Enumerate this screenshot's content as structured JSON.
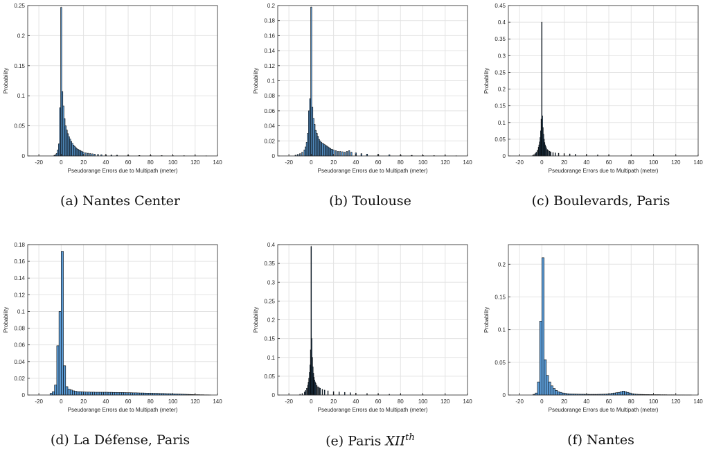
{
  "figure": {
    "colors": {
      "bar_fill": "#5b9bd5",
      "bar_edge": "#000000",
      "grid": "#e3e3e3",
      "axis": "#262626"
    }
  },
  "chart_data": [
    {
      "type": "bar",
      "caption_tag": "(a)",
      "caption_name": "Nantes Center",
      "xlabel": "Pseudorange Errors due to Multipath (meter)",
      "ylabel": "Probability",
      "xlim": [
        -30,
        140
      ],
      "ylim": [
        0,
        0.25
      ],
      "xticks": [
        -20,
        0,
        20,
        40,
        60,
        80,
        100,
        120,
        140
      ],
      "xtick_labels": [
        "-20",
        "0",
        "20",
        "40",
        "60",
        "80",
        "100",
        "120",
        "140"
      ],
      "yticks": [
        0,
        0.05,
        0.1,
        0.15,
        0.2,
        0.25
      ],
      "ytick_labels": [
        "0",
        "0.05",
        "0.1",
        "0.15",
        "0.2",
        "0.25"
      ],
      "grid": true,
      "bar_width": 1,
      "x": [
        -6,
        -5,
        -4,
        -3,
        -2,
        -1,
        0,
        1,
        2,
        3,
        4,
        5,
        6,
        7,
        8,
        9,
        10,
        11,
        12,
        13,
        14,
        15,
        16,
        17,
        18,
        19,
        20,
        22,
        24,
        26,
        28,
        30,
        33,
        36,
        40,
        45,
        50,
        60,
        70,
        80,
        90,
        100,
        110,
        120,
        130
      ],
      "values": [
        0.001,
        0.002,
        0.004,
        0.01,
        0.02,
        0.08,
        0.247,
        0.107,
        0.083,
        0.062,
        0.05,
        0.043,
        0.037,
        0.032,
        0.028,
        0.024,
        0.021,
        0.018,
        0.016,
        0.014,
        0.012,
        0.011,
        0.01,
        0.009,
        0.008,
        0.007,
        0.006,
        0.005,
        0.0045,
        0.004,
        0.0035,
        0.003,
        0.0025,
        0.002,
        0.0017,
        0.0014,
        0.0012,
        0.001,
        0.0008,
        0.0007,
        0.0006,
        0.0005,
        0.0004,
        0.0003,
        0.0002
      ]
    },
    {
      "type": "bar",
      "caption_tag": "(b)",
      "caption_name": "Toulouse",
      "xlabel": "Pseudorange Errors due to Multipath (meter)",
      "ylabel": "Probability",
      "xlim": [
        -30,
        140
      ],
      "ylim": [
        0,
        0.2
      ],
      "xticks": [
        -20,
        0,
        20,
        40,
        60,
        80,
        100,
        120,
        140
      ],
      "xtick_labels": [
        "-20",
        "0",
        "20",
        "40",
        "60",
        "80",
        "100",
        "120",
        "140"
      ],
      "yticks": [
        0,
        0.02,
        0.04,
        0.06,
        0.08,
        0.1,
        0.12,
        0.14,
        0.16,
        0.18,
        0.2
      ],
      "ytick_labels": [
        "0",
        "0.02",
        "0.04",
        "0.06",
        "0.08",
        "0.1",
        "0.12",
        "0.14",
        "0.16",
        "0.18",
        "0.2"
      ],
      "grid": true,
      "bar_width": 1,
      "x": [
        -14,
        -12,
        -10,
        -8,
        -6,
        -5,
        -4,
        -3,
        -2,
        -1,
        0,
        1,
        2,
        3,
        4,
        5,
        6,
        7,
        8,
        9,
        10,
        11,
        12,
        13,
        14,
        15,
        16,
        17,
        18,
        19,
        20,
        22,
        24,
        26,
        28,
        30,
        32,
        34,
        36,
        40,
        45,
        50,
        60,
        70,
        80,
        90,
        100,
        110,
        120,
        130
      ],
      "values": [
        0.001,
        0.002,
        0.003,
        0.005,
        0.008,
        0.012,
        0.018,
        0.03,
        0.06,
        0.076,
        0.198,
        0.065,
        0.05,
        0.042,
        0.034,
        0.03,
        0.026,
        0.022,
        0.02,
        0.018,
        0.017,
        0.016,
        0.015,
        0.014,
        0.013,
        0.012,
        0.011,
        0.01,
        0.009,
        0.0085,
        0.008,
        0.007,
        0.006,
        0.006,
        0.0055,
        0.005,
        0.006,
        0.007,
        0.005,
        0.004,
        0.003,
        0.0025,
        0.002,
        0.0015,
        0.001,
        0.0008,
        0.0006,
        0.0004,
        0.0003,
        0.0002
      ]
    },
    {
      "type": "bar",
      "caption_tag": "(c)",
      "caption_name": "Boulevards, Paris",
      "xlabel": "Pseudorange Errors due to Multipath (meter)",
      "ylabel": "Probability",
      "xlim": [
        -30,
        140
      ],
      "ylim": [
        0,
        0.45
      ],
      "xticks": [
        -20,
        0,
        20,
        40,
        60,
        80,
        100,
        120,
        140
      ],
      "xtick_labels": [
        "-20",
        "0",
        "20",
        "40",
        "60",
        "80",
        "100",
        "120",
        "140"
      ],
      "yticks": [
        0,
        0.05,
        0.1,
        0.15,
        0.2,
        0.25,
        0.3,
        0.35,
        0.4,
        0.45
      ],
      "ytick_labels": [
        "0",
        "0.05",
        "0.1",
        "0.15",
        "0.2",
        "0.25",
        "0.3",
        "0.35",
        "0.4",
        "0.45"
      ],
      "grid": true,
      "bar_width": 0.5,
      "x": [
        -8,
        -7,
        -6,
        -5,
        -4,
        -3,
        -2.5,
        -2,
        -1.5,
        -1,
        -0.5,
        0,
        0.5,
        1,
        1.5,
        2,
        2.5,
        3,
        3.5,
        4,
        5,
        6,
        7,
        8,
        10,
        12,
        15,
        20,
        25,
        30,
        40,
        50,
        60,
        80,
        100,
        120
      ],
      "values": [
        0.002,
        0.004,
        0.007,
        0.011,
        0.017,
        0.026,
        0.033,
        0.042,
        0.055,
        0.075,
        0.11,
        0.4,
        0.12,
        0.085,
        0.065,
        0.05,
        0.04,
        0.033,
        0.028,
        0.024,
        0.019,
        0.016,
        0.014,
        0.012,
        0.01,
        0.009,
        0.008,
        0.007,
        0.006,
        0.005,
        0.004,
        0.003,
        0.002,
        0.0015,
        0.001,
        0.0005
      ]
    },
    {
      "type": "bar",
      "caption_tag": "(d)",
      "caption_name": "La Défense, Paris",
      "xlabel": "Pseudorange Errors due to Multipath (meter)",
      "ylabel": "Probability",
      "xlim": [
        -30,
        140
      ],
      "ylim": [
        0,
        0.18
      ],
      "xticks": [
        -20,
        0,
        20,
        40,
        60,
        80,
        100,
        120,
        140
      ],
      "xtick_labels": [
        "-20",
        "0",
        "20",
        "40",
        "60",
        "80",
        "100",
        "120",
        "140"
      ],
      "yticks": [
        0,
        0.02,
        0.04,
        0.06,
        0.08,
        0.1,
        0.12,
        0.14,
        0.16,
        0.18
      ],
      "ytick_labels": [
        "0",
        "0.02",
        "0.04",
        "0.06",
        "0.08",
        "0.1",
        "0.12",
        "0.14",
        "0.16",
        "0.18"
      ],
      "grid": true,
      "bar_width": 2,
      "x": [
        -9,
        -7,
        -5,
        -3,
        -1,
        1,
        3,
        5,
        7,
        9,
        11,
        13,
        15,
        17,
        19,
        21,
        23,
        25,
        27,
        29,
        31,
        33,
        35,
        37,
        39,
        41,
        43,
        45,
        47,
        49,
        51,
        53,
        55,
        57,
        59,
        61,
        63,
        65,
        67,
        69,
        71,
        73,
        75,
        77,
        79,
        81,
        83,
        85,
        87,
        89,
        91,
        93,
        95,
        97,
        99,
        101,
        103,
        105,
        107,
        109,
        111,
        113,
        115,
        117,
        119,
        121,
        123,
        125,
        127,
        129,
        131,
        133
      ],
      "values": [
        0.002,
        0.004,
        0.012,
        0.059,
        0.1,
        0.172,
        0.035,
        0.01,
        0.007,
        0.006,
        0.005,
        0.0045,
        0.004,
        0.004,
        0.0038,
        0.0036,
        0.0035,
        0.0035,
        0.0034,
        0.0034,
        0.0033,
        0.0033,
        0.0033,
        0.0033,
        0.0033,
        0.0033,
        0.0032,
        0.0032,
        0.0031,
        0.0031,
        0.003,
        0.003,
        0.003,
        0.0029,
        0.0028,
        0.0028,
        0.0027,
        0.0026,
        0.0026,
        0.0025,
        0.0024,
        0.0024,
        0.0023,
        0.0022,
        0.0022,
        0.0021,
        0.002,
        0.002,
        0.0019,
        0.0018,
        0.0018,
        0.0017,
        0.0016,
        0.0016,
        0.0015,
        0.0014,
        0.0013,
        0.0012,
        0.0011,
        0.001,
        0.0009,
        0.0008,
        0.0007,
        0.0006,
        0.0005,
        0.0004,
        0.0004,
        0.0003,
        0.0003,
        0.0002,
        0.0002,
        0.0001
      ]
    },
    {
      "type": "bar",
      "caption_tag": "(e)",
      "caption_name": "Paris",
      "caption_math": "XII",
      "caption_sup": "th",
      "xlabel": "Pseudorange Errors due to Multipath (meter)",
      "ylabel": "Probability",
      "xlim": [
        -30,
        140
      ],
      "ylim": [
        0,
        0.4
      ],
      "xticks": [
        -20,
        0,
        20,
        40,
        60,
        80,
        100,
        120,
        140
      ],
      "xtick_labels": [
        "-20",
        "0",
        "20",
        "40",
        "60",
        "80",
        "100",
        "120",
        "140"
      ],
      "yticks": [
        0,
        0.05,
        0.1,
        0.15,
        0.2,
        0.25,
        0.3,
        0.35,
        0.4
      ],
      "ytick_labels": [
        "0",
        "0.05",
        "0.1",
        "0.15",
        "0.2",
        "0.25",
        "0.3",
        "0.35",
        "0.4"
      ],
      "grid": true,
      "bar_width": 0.5,
      "x": [
        -10,
        -8,
        -6,
        -5,
        -4,
        -3,
        -2.5,
        -2,
        -1.5,
        -1,
        -0.5,
        0,
        0.5,
        1,
        1.5,
        2,
        2.5,
        3,
        3.5,
        4,
        5,
        6,
        7,
        8,
        10,
        12,
        15,
        20,
        25,
        30,
        35,
        40,
        50,
        60,
        70,
        80,
        100,
        120
      ],
      "values": [
        0.002,
        0.004,
        0.008,
        0.012,
        0.018,
        0.026,
        0.034,
        0.045,
        0.06,
        0.08,
        0.12,
        0.395,
        0.15,
        0.1,
        0.075,
        0.058,
        0.047,
        0.04,
        0.035,
        0.031,
        0.026,
        0.022,
        0.02,
        0.018,
        0.015,
        0.013,
        0.011,
        0.009,
        0.008,
        0.007,
        0.006,
        0.005,
        0.004,
        0.003,
        0.002,
        0.0015,
        0.001,
        0.0005
      ]
    },
    {
      "type": "bar",
      "caption_tag": "(f)",
      "caption_name": "Nantes",
      "xlabel": "Pseudorange Errors due to Multipath (meter)",
      "ylabel": "Probability",
      "xlim": [
        -30,
        140
      ],
      "ylim": [
        0,
        0.23
      ],
      "xticks": [
        -20,
        0,
        20,
        40,
        60,
        80,
        100,
        120,
        140
      ],
      "xtick_labels": [
        "-20",
        "0",
        "20",
        "40",
        "60",
        "80",
        "100",
        "120",
        "140"
      ],
      "yticks": [
        0,
        0.05,
        0.1,
        0.15,
        0.2
      ],
      "ytick_labels": [
        "0",
        "0.05",
        "0.1",
        "0.15",
        "0.2"
      ],
      "grid": true,
      "bar_width": 2,
      "x": [
        -7,
        -5,
        -3,
        -1,
        1,
        3,
        5,
        7,
        9,
        11,
        13,
        15,
        17,
        19,
        21,
        23,
        25,
        27,
        29,
        31,
        33,
        35,
        37,
        39,
        41,
        43,
        45,
        47,
        49,
        51,
        53,
        55,
        57,
        59,
        61,
        63,
        65,
        67,
        69,
        71,
        73,
        75,
        77,
        79,
        81,
        83,
        85,
        87,
        89,
        91,
        93,
        95,
        97,
        99,
        101,
        103,
        105,
        107,
        109,
        111,
        113,
        115,
        117,
        119,
        121,
        123,
        125,
        127,
        129,
        131,
        133
      ],
      "values": [
        0.001,
        0.003,
        0.02,
        0.113,
        0.21,
        0.054,
        0.03,
        0.02,
        0.014,
        0.01,
        0.007,
        0.005,
        0.004,
        0.003,
        0.0025,
        0.002,
        0.0018,
        0.0016,
        0.0015,
        0.0014,
        0.0013,
        0.0012,
        0.0012,
        0.0011,
        0.0011,
        0.001,
        0.001,
        0.001,
        0.001,
        0.0011,
        0.0012,
        0.0013,
        0.0014,
        0.0016,
        0.002,
        0.0025,
        0.003,
        0.0035,
        0.004,
        0.005,
        0.006,
        0.005,
        0.004,
        0.003,
        0.002,
        0.0015,
        0.0012,
        0.001,
        0.0009,
        0.0008,
        0.0007,
        0.0007,
        0.0006,
        0.0006,
        0.0005,
        0.0005,
        0.0005,
        0.0004,
        0.0004,
        0.0004,
        0.0003,
        0.0003,
        0.0003,
        0.0003,
        0.0002,
        0.0002,
        0.0002,
        0.0002,
        0.0001,
        0.0001,
        0.0001
      ]
    }
  ]
}
